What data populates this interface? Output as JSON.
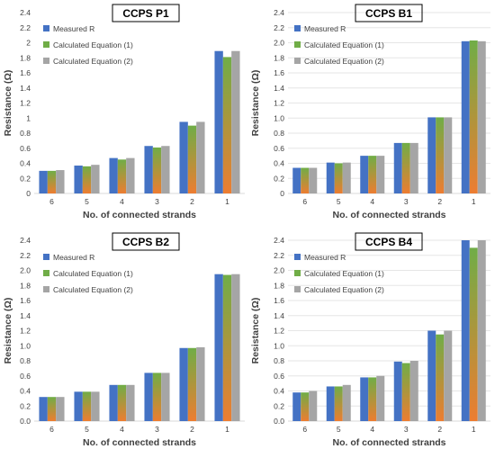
{
  "colors": {
    "measured": "#4472C4",
    "calc1_top": "#70AD47",
    "calc1_bottom": "#ED7D31",
    "calc2": "#A5A5A5",
    "grid": "#E6E6E6",
    "axis_text": "#404040"
  },
  "chart_data": [
    {
      "type": "bar",
      "title": "CCPS P1",
      "categories": [
        "6",
        "5",
        "4",
        "3",
        "2",
        "1"
      ],
      "series": [
        {
          "name": "Measured R",
          "values": [
            0.3,
            0.37,
            0.47,
            0.63,
            0.95,
            1.89
          ]
        },
        {
          "name": "Calculated Equation (1)",
          "values": [
            0.3,
            0.36,
            0.45,
            0.61,
            0.9,
            1.81
          ]
        },
        {
          "name": "Calculated Equation (2)",
          "values": [
            0.31,
            0.38,
            0.47,
            0.63,
            0.95,
            1.89
          ]
        }
      ],
      "xlabel": "No. of connected strands",
      "ylabel": "Resistance (Ω)",
      "ylim": [
        0,
        2.4
      ],
      "yticks": [
        "0",
        "0.2",
        "0.4",
        "0.6",
        "0.8",
        "1",
        "1.2",
        "1.4",
        "1.6",
        "1.8",
        "2",
        "2.2",
        "2.4"
      ],
      "grid": false,
      "legend": "top-left"
    },
    {
      "type": "bar",
      "title": "CCPS B1",
      "categories": [
        "6",
        "5",
        "4",
        "3",
        "2",
        "1"
      ],
      "series": [
        {
          "name": "Measured R",
          "values": [
            0.34,
            0.41,
            0.5,
            0.67,
            1.01,
            2.02
          ]
        },
        {
          "name": "Calculated Equation (1)",
          "values": [
            0.34,
            0.4,
            0.5,
            0.67,
            1.01,
            2.03
          ]
        },
        {
          "name": "Calculated Equation (2)",
          "values": [
            0.34,
            0.41,
            0.5,
            0.67,
            1.01,
            2.02
          ]
        }
      ],
      "xlabel": "No. of connected strands",
      "ylabel": "Resistance (Ω)",
      "ylim": [
        0,
        2.4
      ],
      "yticks": [
        "0",
        "0.2",
        "0.4",
        "0.6",
        "0.8",
        "1.0",
        "1.2",
        "1.4",
        "1.6",
        "1.8",
        "2.0",
        "2.2",
        "2.4"
      ],
      "grid": true,
      "legend": "top-left"
    },
    {
      "type": "bar",
      "title": "CCPS B2",
      "categories": [
        "6",
        "5",
        "4",
        "3",
        "2",
        "1"
      ],
      "series": [
        {
          "name": "Measured R",
          "values": [
            0.32,
            0.39,
            0.48,
            0.64,
            0.97,
            1.95
          ]
        },
        {
          "name": "Calculated Equation (1)",
          "values": [
            0.32,
            0.39,
            0.48,
            0.64,
            0.97,
            1.94
          ]
        },
        {
          "name": "Calculated Equation (2)",
          "values": [
            0.32,
            0.39,
            0.48,
            0.64,
            0.98,
            1.95
          ]
        }
      ],
      "xlabel": "No. of connected strands",
      "ylabel": "Resistance (Ω)",
      "ylim": [
        0,
        2.4
      ],
      "yticks": [
        "0.0",
        "0.2",
        "0.4",
        "0.6",
        "0.8",
        "1.0",
        "1.2",
        "1.4",
        "1.6",
        "1.8",
        "2.0",
        "2.2",
        "2.4"
      ],
      "grid": false,
      "legend": "top-left"
    },
    {
      "type": "bar",
      "title": "CCPS B4",
      "categories": [
        "6",
        "5",
        "4",
        "3",
        "2",
        "1"
      ],
      "series": [
        {
          "name": "Measured R",
          "values": [
            0.38,
            0.46,
            0.58,
            0.79,
            1.2,
            2.4
          ]
        },
        {
          "name": "Calculated Equation (1)",
          "values": [
            0.38,
            0.46,
            0.58,
            0.77,
            1.15,
            2.3
          ]
        },
        {
          "name": "Calculated Equation (2)",
          "values": [
            0.4,
            0.48,
            0.6,
            0.8,
            1.2,
            2.4
          ]
        }
      ],
      "xlabel": "No. of connected strands",
      "ylabel": "Resistance (Ω)",
      "ylim": [
        0,
        2.4
      ],
      "yticks": [
        "0.0",
        "0.2",
        "0.4",
        "0.6",
        "0.8",
        "1.0",
        "1.2",
        "1.4",
        "1.6",
        "1.8",
        "2.0",
        "2.2",
        "2.4"
      ],
      "grid": true,
      "legend": "top-left"
    }
  ]
}
